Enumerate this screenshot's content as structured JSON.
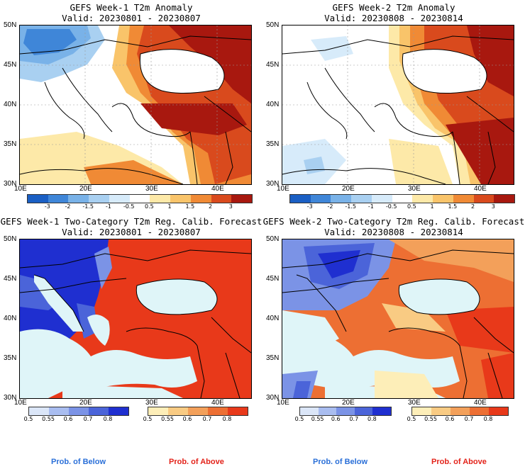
{
  "panels": [
    {
      "title": "GEFS Week-1 T2m Anomaly",
      "valid": "Valid: 20230801 - 20230807"
    },
    {
      "title": "GEFS Week-2 T2m Anomaly",
      "valid": "Valid: 20230808 - 20230814"
    },
    {
      "title": "GEFS Week-1 Two-Category T2m Reg. Calib. Forecast",
      "valid": "Valid: 20230801 - 20230807"
    },
    {
      "title": "GEFS Week-2 Two-Category T2m Reg. Calib. Forecast",
      "valid": "Valid: 20230808 - 20230814"
    }
  ],
  "axes": {
    "lat_labels": [
      "50N",
      "45N",
      "40N",
      "35N",
      "30N"
    ],
    "lon_labels": [
      "10E",
      "20E",
      "30E",
      "40E"
    ]
  },
  "anomaly_colorbar": {
    "labels": [
      "-3",
      "-2",
      "-1.5",
      "-1",
      "-0.5",
      "0.5",
      "1",
      "1.5",
      "2",
      "3"
    ],
    "colors": [
      "#1a5fc4",
      "#3f86d8",
      "#79b2e8",
      "#a9d0f1",
      "#d7ebfa",
      "#ffffff",
      "#fde9a8",
      "#f9c46a",
      "#f08a35",
      "#d94a1d",
      "#a8180f"
    ]
  },
  "prob_colorbar": {
    "below_labels": [
      "0.5",
      "0.55",
      "0.6",
      "0.7",
      "0.8"
    ],
    "below_colors": [
      "#dbe6f8",
      "#a9bdf0",
      "#7b93e6",
      "#4b64d9",
      "#1f2fd0"
    ],
    "above_labels": [
      "0.5",
      "0.55",
      "0.6",
      "0.7",
      "0.8"
    ],
    "above_colors": [
      "#fdeeb8",
      "#f9cb83",
      "#f3a05a",
      "#ed6f33",
      "#e8391a"
    ]
  },
  "prob_labels": {
    "below": "Prob. of Below",
    "above": "Prob. of Above"
  },
  "colors": {
    "below_label": "#2a6fd8",
    "above_label": "#e3231a",
    "sea": "#dff5f8",
    "land_outline": "#000000"
  }
}
